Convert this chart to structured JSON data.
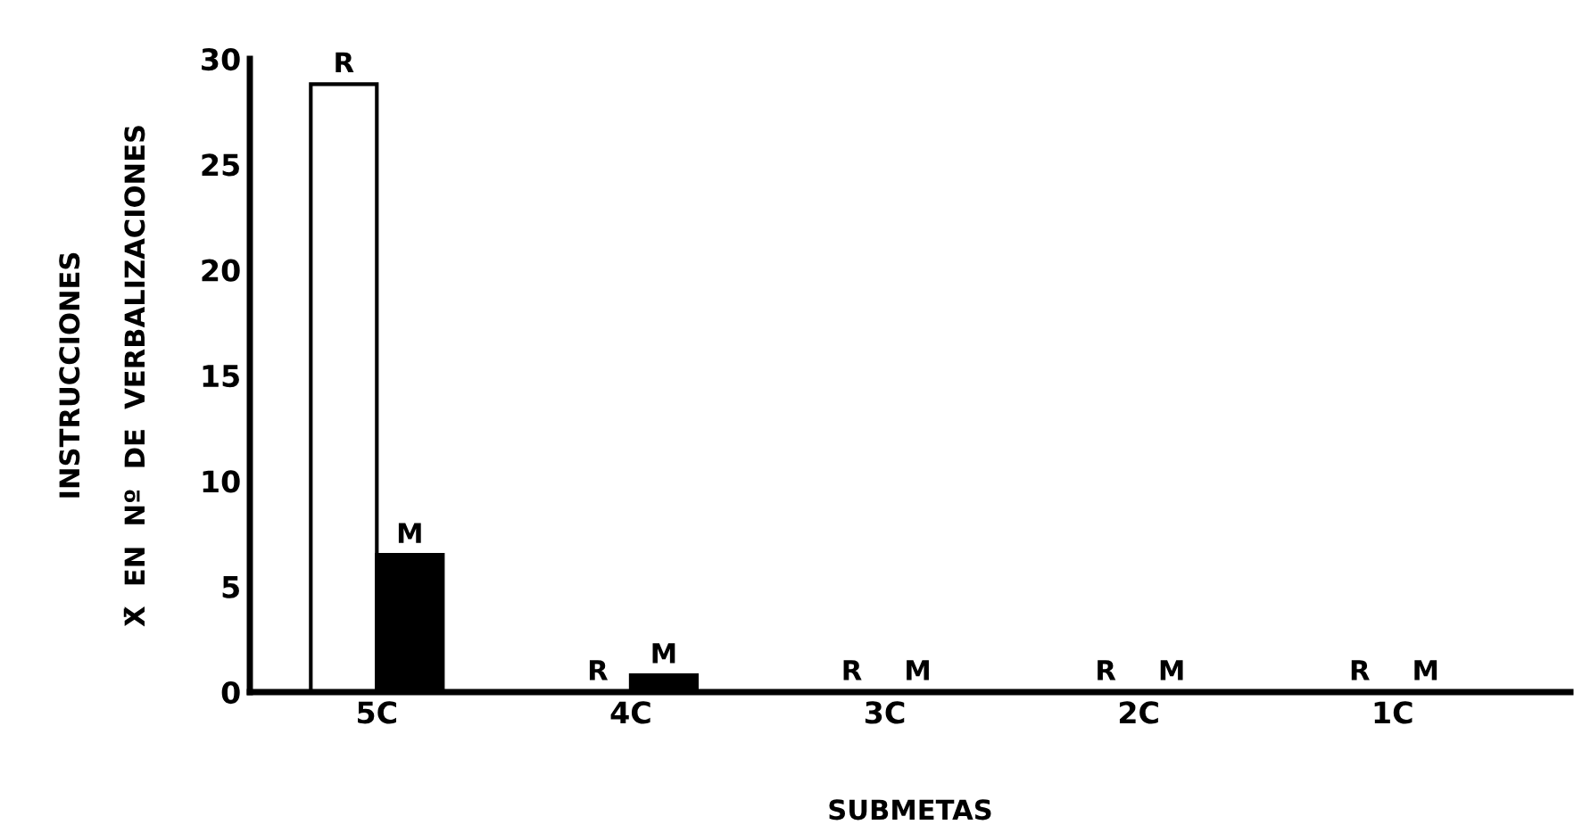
{
  "chart_data": {
    "type": "bar",
    "xlabel": "SUBMETAS",
    "ylabel": "INSTRUCCIONES\n\nX̄  EN  Nº  DE  VERBALIZACIONES",
    "categories": [
      "5C",
      "4C",
      "3C",
      "2C",
      "1C"
    ],
    "series": [
      {
        "name": "R",
        "color": "#ffffff",
        "values": [
          28.8,
          0,
          0,
          0,
          0
        ]
      },
      {
        "name": "M",
        "color": "#000000",
        "values": [
          6.5,
          0.8,
          0,
          0,
          0
        ]
      }
    ],
    "ylim": [
      0,
      30
    ],
    "yticks": [
      0,
      5,
      10,
      15,
      20,
      25,
      30
    ],
    "grid": false,
    "legend": false
  }
}
